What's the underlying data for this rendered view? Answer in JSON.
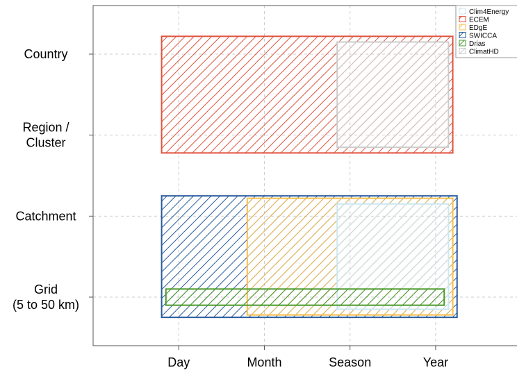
{
  "chart_data": {
    "type": "range-rectangles",
    "x_axis": {
      "categories": [
        "Day",
        "Month",
        "Season",
        "Year"
      ],
      "range": [
        -1.0,
        3.95
      ]
    },
    "y_axis": {
      "categories": [
        "Grid\n(5 to 50 km)",
        "Catchment",
        "Region /\nCluster",
        "Country"
      ],
      "range": [
        -0.6,
        3.6
      ]
    },
    "grid": true,
    "legend_position": "top-right",
    "series": [
      {
        "name": "ECEM",
        "color": "#e0533e",
        "hatch": "diagonal",
        "x": [
          -0.2,
          3.2
        ],
        "y": [
          1.78,
          3.22
        ]
      },
      {
        "name": "ClimatHD",
        "color": "#cccccc",
        "hatch": "diagonal",
        "x": [
          1.85,
          3.15
        ],
        "y": [
          1.85,
          3.15
        ]
      },
      {
        "name": "SWICCA",
        "color": "#2a5c9e",
        "hatch": "diagonal",
        "x": [
          -0.2,
          3.25
        ],
        "y": [
          -0.25,
          1.25
        ]
      },
      {
        "name": "EDgE",
        "color": "#f6bf4f",
        "hatch": "diagonal",
        "x": [
          0.8,
          3.2
        ],
        "y": [
          -0.22,
          1.22
        ]
      },
      {
        "name": "Clim4Energy",
        "color": "#cde7f2",
        "hatch": "diagonal",
        "x": [
          1.85,
          3.15
        ],
        "y": [
          -0.15,
          1.15
        ]
      },
      {
        "name": "Drias",
        "color": "#4a9a2a",
        "hatch": "diagonal",
        "x": [
          -0.15,
          3.1
        ],
        "y": [
          -0.1,
          0.1
        ]
      }
    ],
    "legend_order": [
      "Clim4Energy",
      "ECEM",
      "EDgE",
      "SWICCA",
      "Drias",
      "ClimatHD"
    ]
  }
}
